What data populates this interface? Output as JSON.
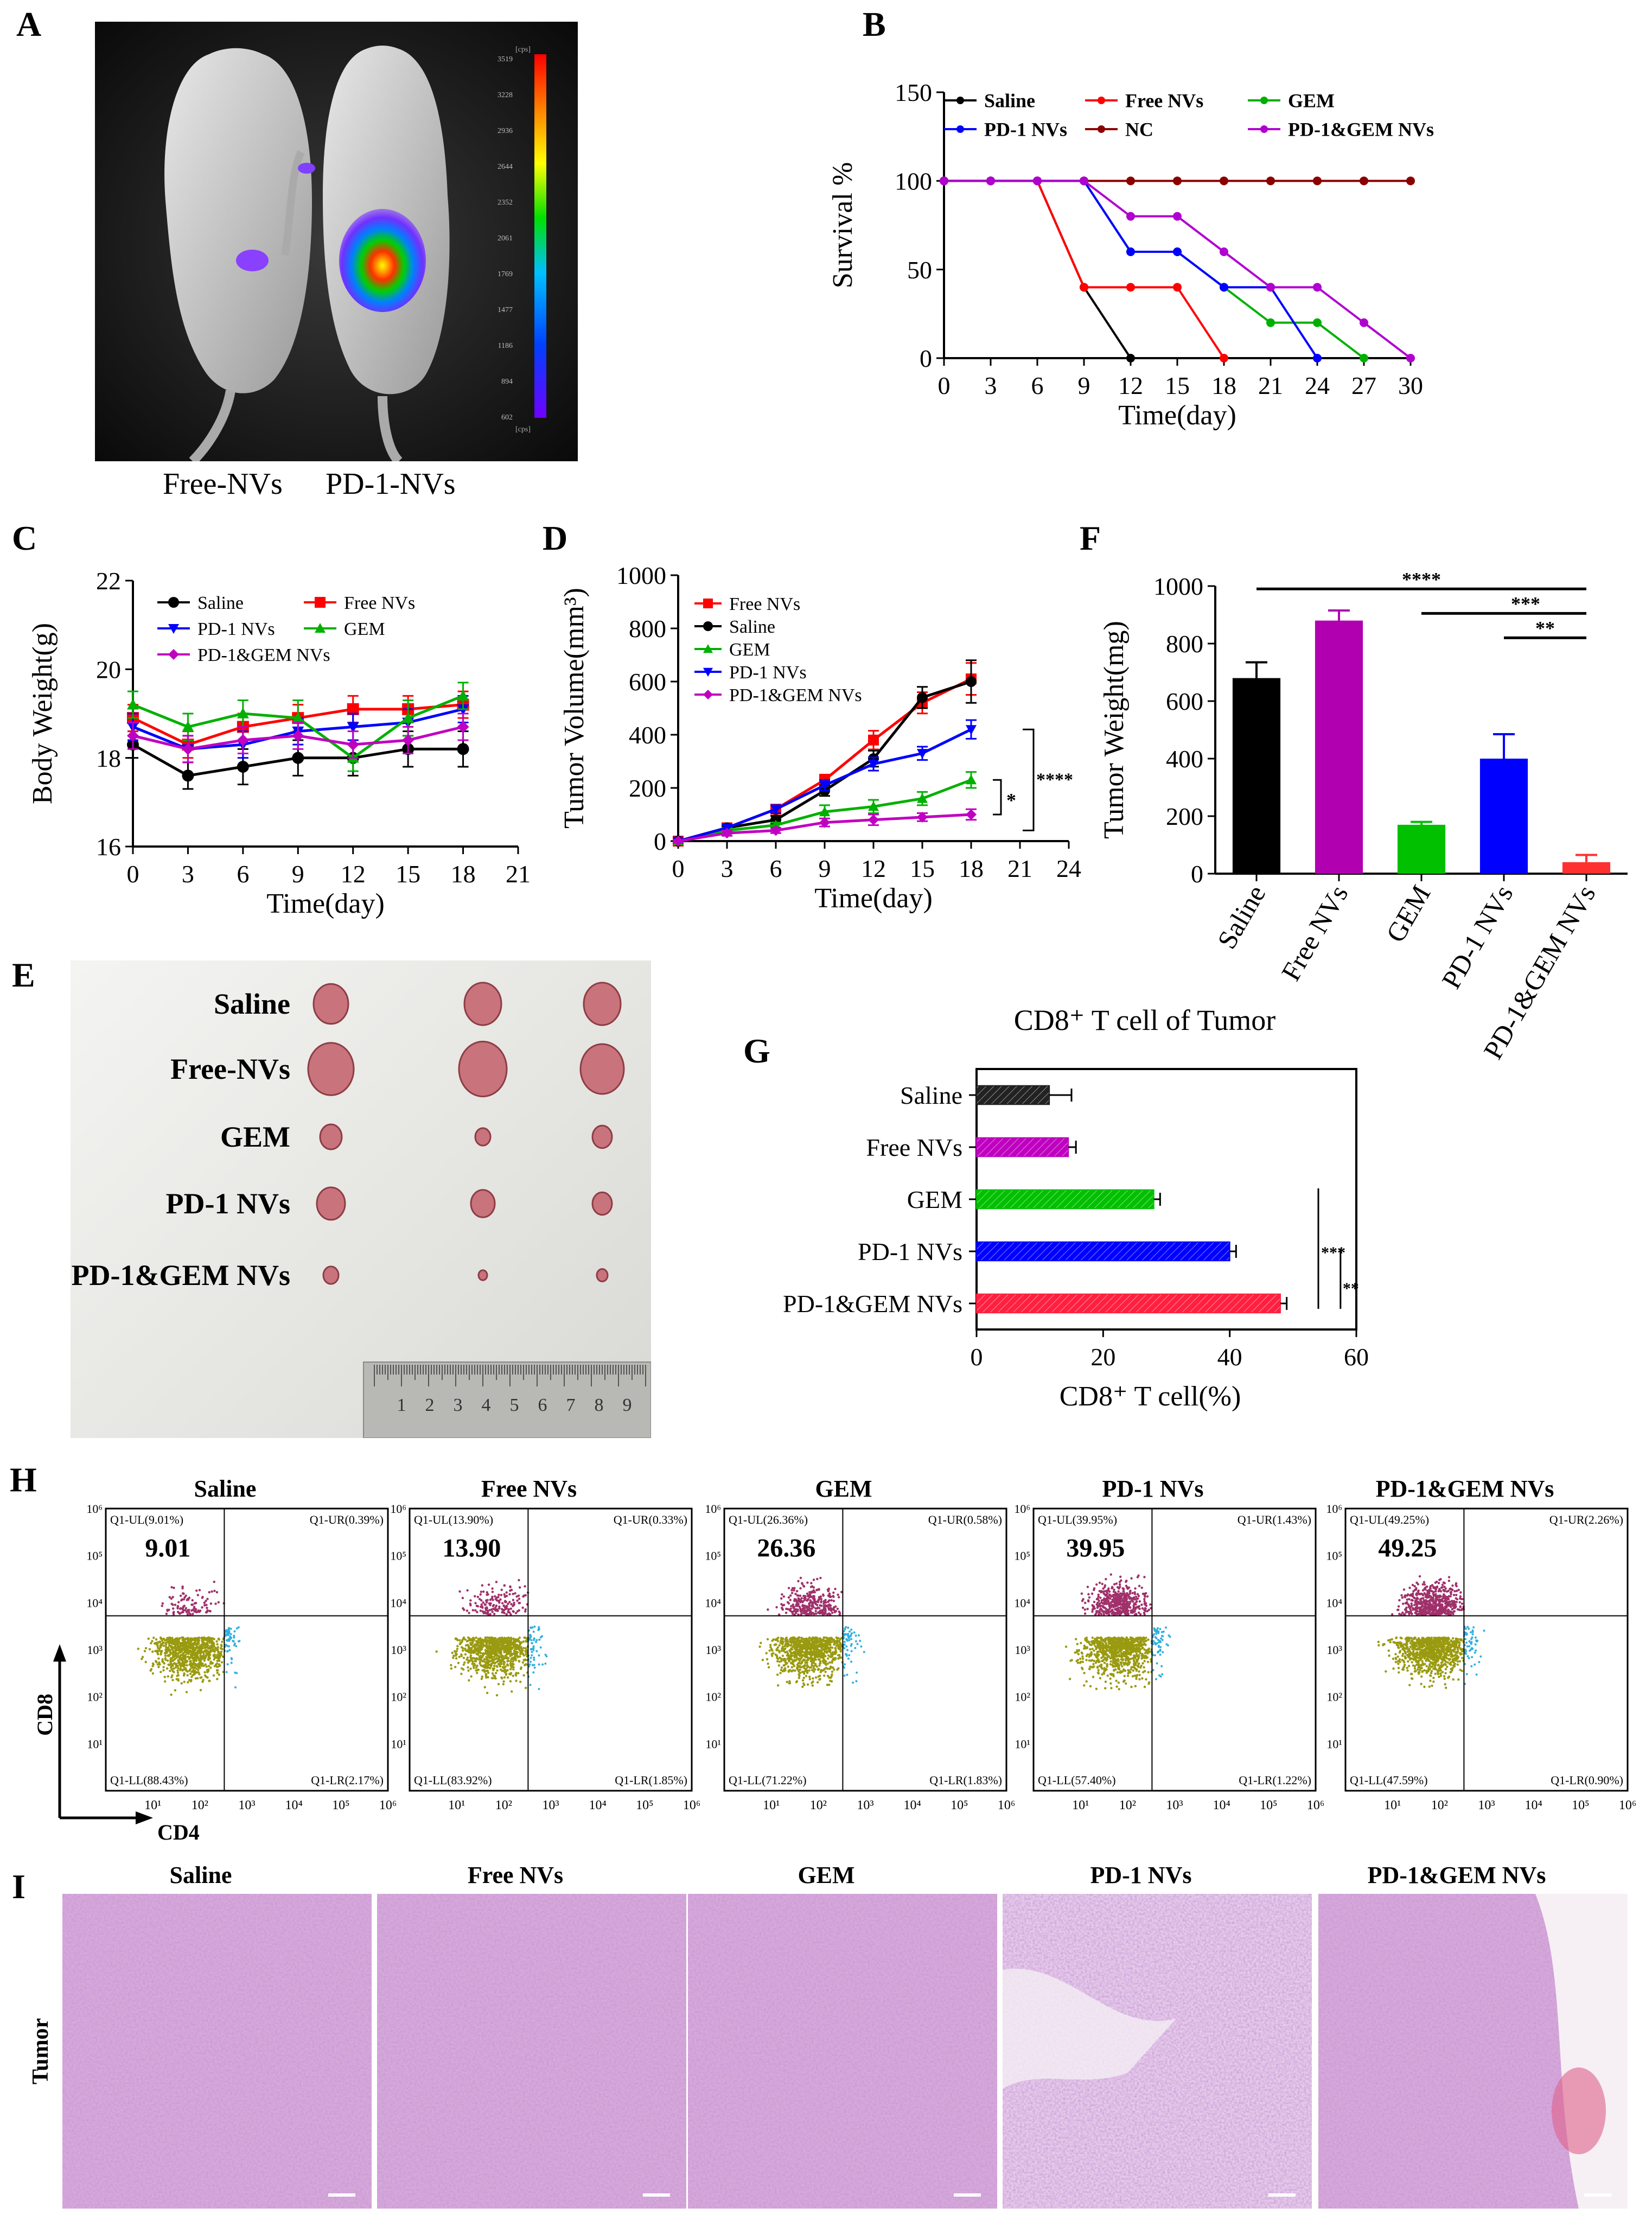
{
  "letters": {
    "A": "A",
    "B": "B",
    "C": "C",
    "D": "D",
    "E": "E",
    "F": "F",
    "G": "G",
    "H": "H",
    "I": "I"
  },
  "panelA": {
    "captions": [
      "Free-NVs",
      "PD-1-NVs"
    ],
    "scale_unit": "[cps]",
    "scale_ticks": [
      "3519",
      "3228",
      "2936",
      "2644",
      "2352",
      "2061",
      "1769",
      "1477",
      "1186",
      "894",
      "602"
    ]
  },
  "chart_data": [
    {
      "id": "B",
      "type": "line",
      "title": "",
      "xlabel": "Time(day)",
      "ylabel": "Survival %",
      "xlim": [
        0,
        30
      ],
      "ylim": [
        0,
        150
      ],
      "xticks": [
        0,
        3,
        6,
        9,
        12,
        15,
        18,
        21,
        24,
        27,
        30
      ],
      "yticks": [
        0,
        50,
        100,
        150
      ],
      "series": [
        {
          "name": "Saline",
          "color": "#000000",
          "x": [
            0,
            3,
            6,
            9,
            12
          ],
          "y": [
            100,
            100,
            100,
            40,
            0
          ]
        },
        {
          "name": "Free NVs",
          "color": "#ff0000",
          "x": [
            0,
            3,
            6,
            9,
            12,
            15,
            18
          ],
          "y": [
            100,
            100,
            100,
            40,
            40,
            40,
            0
          ]
        },
        {
          "name": "GEM",
          "color": "#00b000",
          "x": [
            0,
            3,
            6,
            9,
            12,
            15,
            18,
            21,
            24,
            27
          ],
          "y": [
            100,
            100,
            100,
            100,
            60,
            60,
            40,
            20,
            20,
            0
          ]
        },
        {
          "name": "PD-1 NVs",
          "color": "#0000ff",
          "x": [
            0,
            3,
            6,
            9,
            12,
            15,
            18,
            21,
            24
          ],
          "y": [
            100,
            100,
            100,
            100,
            60,
            60,
            40,
            40,
            0
          ]
        },
        {
          "name": "NC",
          "color": "#8b0000",
          "x": [
            0,
            3,
            6,
            9,
            12,
            15,
            18,
            21,
            24,
            27,
            30
          ],
          "y": [
            100,
            100,
            100,
            100,
            100,
            100,
            100,
            100,
            100,
            100,
            100
          ]
        },
        {
          "name": "PD-1&GEM NVs",
          "color": "#b000d0",
          "x": [
            0,
            3,
            6,
            9,
            12,
            15,
            18,
            21,
            24,
            27,
            30
          ],
          "y": [
            100,
            100,
            100,
            100,
            80,
            80,
            60,
            40,
            40,
            20,
            0
          ]
        }
      ]
    },
    {
      "id": "C",
      "type": "line",
      "title": "",
      "xlabel": "Time(day)",
      "ylabel": "Body Weight(g)",
      "xlim": [
        0,
        21
      ],
      "ylim": [
        16,
        22
      ],
      "xticks": [
        0,
        3,
        6,
        9,
        12,
        15,
        18,
        21
      ],
      "yticks": [
        16,
        18,
        20,
        22
      ],
      "series": [
        {
          "name": "Saline",
          "color": "#000000",
          "x": [
            0,
            3,
            6,
            9,
            12,
            15,
            18
          ],
          "y": [
            18.3,
            17.6,
            17.8,
            18.0,
            18.0,
            18.2,
            18.2
          ],
          "err": [
            0.3,
            0.3,
            0.4,
            0.4,
            0.4,
            0.4,
            0.4
          ]
        },
        {
          "name": "Free NVs",
          "color": "#ff0000",
          "x": [
            0,
            3,
            6,
            9,
            12,
            15,
            18
          ],
          "y": [
            18.9,
            18.3,
            18.7,
            18.9,
            19.1,
            19.1,
            19.2
          ],
          "err": [
            0.3,
            0.3,
            0.3,
            0.3,
            0.3,
            0.3,
            0.3
          ]
        },
        {
          "name": "PD-1 NVs",
          "color": "#0000ff",
          "x": [
            0,
            3,
            6,
            9,
            12,
            15,
            18
          ],
          "y": [
            18.7,
            18.2,
            18.3,
            18.6,
            18.7,
            18.8,
            19.1
          ],
          "err": [
            0.3,
            0.3,
            0.3,
            0.3,
            0.3,
            0.3,
            0.3
          ]
        },
        {
          "name": "GEM",
          "color": "#00b000",
          "x": [
            0,
            3,
            6,
            9,
            12,
            15,
            18
          ],
          "y": [
            19.2,
            18.7,
            19.0,
            18.9,
            18.0,
            18.9,
            19.4
          ],
          "err": [
            0.3,
            0.3,
            0.3,
            0.4,
            0.3,
            0.4,
            0.3
          ]
        },
        {
          "name": "PD-1&GEM NVs",
          "color": "#c000c0",
          "x": [
            0,
            3,
            6,
            9,
            12,
            15,
            18
          ],
          "y": [
            18.5,
            18.2,
            18.4,
            18.5,
            18.3,
            18.4,
            18.7
          ],
          "err": [
            0.3,
            0.3,
            0.3,
            0.3,
            0.3,
            0.3,
            0.3
          ]
        }
      ],
      "legend_order": [
        "Saline",
        "Free NVs",
        "PD-1 NVs",
        "GEM",
        "PD-1&GEM NVs"
      ]
    },
    {
      "id": "D",
      "type": "line",
      "title": "",
      "xlabel": "Time(day)",
      "ylabel": "Tumor Volume(mm³)",
      "xlim": [
        0,
        24
      ],
      "ylim": [
        0,
        1000
      ],
      "xticks": [
        0,
        3,
        6,
        9,
        12,
        15,
        18,
        21,
        24
      ],
      "yticks": [
        0,
        200,
        400,
        600,
        800,
        1000
      ],
      "series": [
        {
          "name": "Free NVs",
          "color": "#ff0000",
          "x": [
            0,
            3,
            6,
            9,
            12,
            15,
            18
          ],
          "y": [
            0,
            50,
            120,
            230,
            380,
            520,
            610
          ],
          "err": [
            5,
            10,
            15,
            20,
            35,
            40,
            60
          ]
        },
        {
          "name": "Saline",
          "color": "#000000",
          "x": [
            0,
            3,
            6,
            9,
            12,
            15,
            18
          ],
          "y": [
            0,
            50,
            80,
            190,
            310,
            540,
            600
          ],
          "err": [
            5,
            10,
            15,
            20,
            30,
            40,
            80
          ]
        },
        {
          "name": "GEM",
          "color": "#00b000",
          "x": [
            0,
            3,
            6,
            9,
            12,
            15,
            18
          ],
          "y": [
            0,
            40,
            60,
            110,
            130,
            160,
            230
          ],
          "err": [
            5,
            10,
            10,
            25,
            25,
            25,
            30
          ]
        },
        {
          "name": "PD-1 NVs",
          "color": "#0000ff",
          "x": [
            0,
            3,
            6,
            9,
            12,
            15,
            18
          ],
          "y": [
            0,
            50,
            120,
            210,
            290,
            330,
            420
          ],
          "err": [
            5,
            10,
            15,
            20,
            25,
            25,
            35
          ]
        },
        {
          "name": "PD-1&GEM NVs",
          "color": "#c000c0",
          "x": [
            0,
            3,
            6,
            9,
            12,
            15,
            18
          ],
          "y": [
            0,
            30,
            40,
            70,
            80,
            90,
            100
          ],
          "err": [
            5,
            10,
            10,
            15,
            20,
            15,
            20
          ]
        }
      ],
      "annotations": [
        "*",
        "****"
      ]
    },
    {
      "id": "F",
      "type": "bar",
      "title": "",
      "xlabel": "",
      "ylabel": "Tumor Weight(mg)",
      "ylim": [
        0,
        1000
      ],
      "yticks": [
        0,
        200,
        400,
        600,
        800,
        1000
      ],
      "categories": [
        "Saline",
        "Free NVs",
        "GEM",
        "PD-1 NVs",
        "PD-1&GEM NVs"
      ],
      "values": [
        680,
        880,
        170,
        400,
        40
      ],
      "errors": [
        55,
        35,
        10,
        85,
        25
      ],
      "colors": [
        "#000000",
        "#b000b0",
        "#00c000",
        "#0000ff",
        "#ff3030"
      ],
      "annotations": [
        "****",
        "***",
        "**"
      ]
    },
    {
      "id": "G",
      "type": "bar",
      "orientation": "horizontal",
      "title": "CD8⁺ T cell of Tumor",
      "xlabel": "CD8⁺ T cell(%)",
      "ylabel": "",
      "xlim": [
        0,
        60
      ],
      "xticks": [
        0,
        20,
        40,
        60
      ],
      "categories": [
        "Saline",
        "Free NVs",
        "GEM",
        "PD-1 NVs",
        "PD-1&GEM NVs"
      ],
      "values": [
        11.5,
        14.5,
        28,
        40,
        48
      ],
      "errors": [
        3.5,
        1.2,
        1.0,
        1.0,
        1.0
      ],
      "colors": [
        "#222222",
        "#c000c0",
        "#00c000",
        "#0000ff",
        "#ff2040"
      ],
      "annotations": [
        "***",
        "**"
      ]
    }
  ],
  "panelE": {
    "rows": [
      "Saline",
      "Free-NVs",
      "GEM",
      "PD-1 NVs",
      "PD-1&GEM NVs"
    ],
    "ruler": [
      "1",
      "2",
      "3",
      "4",
      "5",
      "6",
      "7",
      "8",
      "9"
    ]
  },
  "panelH": {
    "axis_x": "CD4",
    "axis_y": "CD8",
    "tick_labels": [
      "10⁰",
      "10¹",
      "10²",
      "10³",
      "10⁴",
      "10⁵",
      "10⁶"
    ],
    "plots": [
      {
        "title": "Saline",
        "value": "9.01",
        "ul": "Q1-UL(9.01%)",
        "ur": "Q1-UR(0.39%)",
        "ll": "Q1-LL(88.43%)",
        "lr": "Q1-LR(2.17%)"
      },
      {
        "title": "Free NVs",
        "value": "13.90",
        "ul": "Q1-UL(13.90%)",
        "ur": "Q1-UR(0.33%)",
        "ll": "Q1-LL(83.92%)",
        "lr": "Q1-LR(1.85%)"
      },
      {
        "title": "GEM",
        "value": "26.36",
        "ul": "Q1-UL(26.36%)",
        "ur": "Q1-UR(0.58%)",
        "ll": "Q1-LL(71.22%)",
        "lr": "Q1-LR(1.83%)"
      },
      {
        "title": "PD-1 NVs",
        "value": "39.95",
        "ul": "Q1-UL(39.95%)",
        "ur": "Q1-UR(1.43%)",
        "ll": "Q1-LL(57.40%)",
        "lr": "Q1-LR(1.22%)"
      },
      {
        "title": "PD-1&GEM NVs",
        "value": "49.25",
        "ul": "Q1-UL(49.25%)",
        "ur": "Q1-UR(2.26%)",
        "ll": "Q1-LL(47.59%)",
        "lr": "Q1-LR(0.90%)"
      }
    ]
  },
  "panelI": {
    "row_label": "Tumor",
    "titles": [
      "Saline",
      "Free NVs",
      "GEM",
      "PD-1 NVs",
      "PD-1&GEM NVs"
    ]
  }
}
